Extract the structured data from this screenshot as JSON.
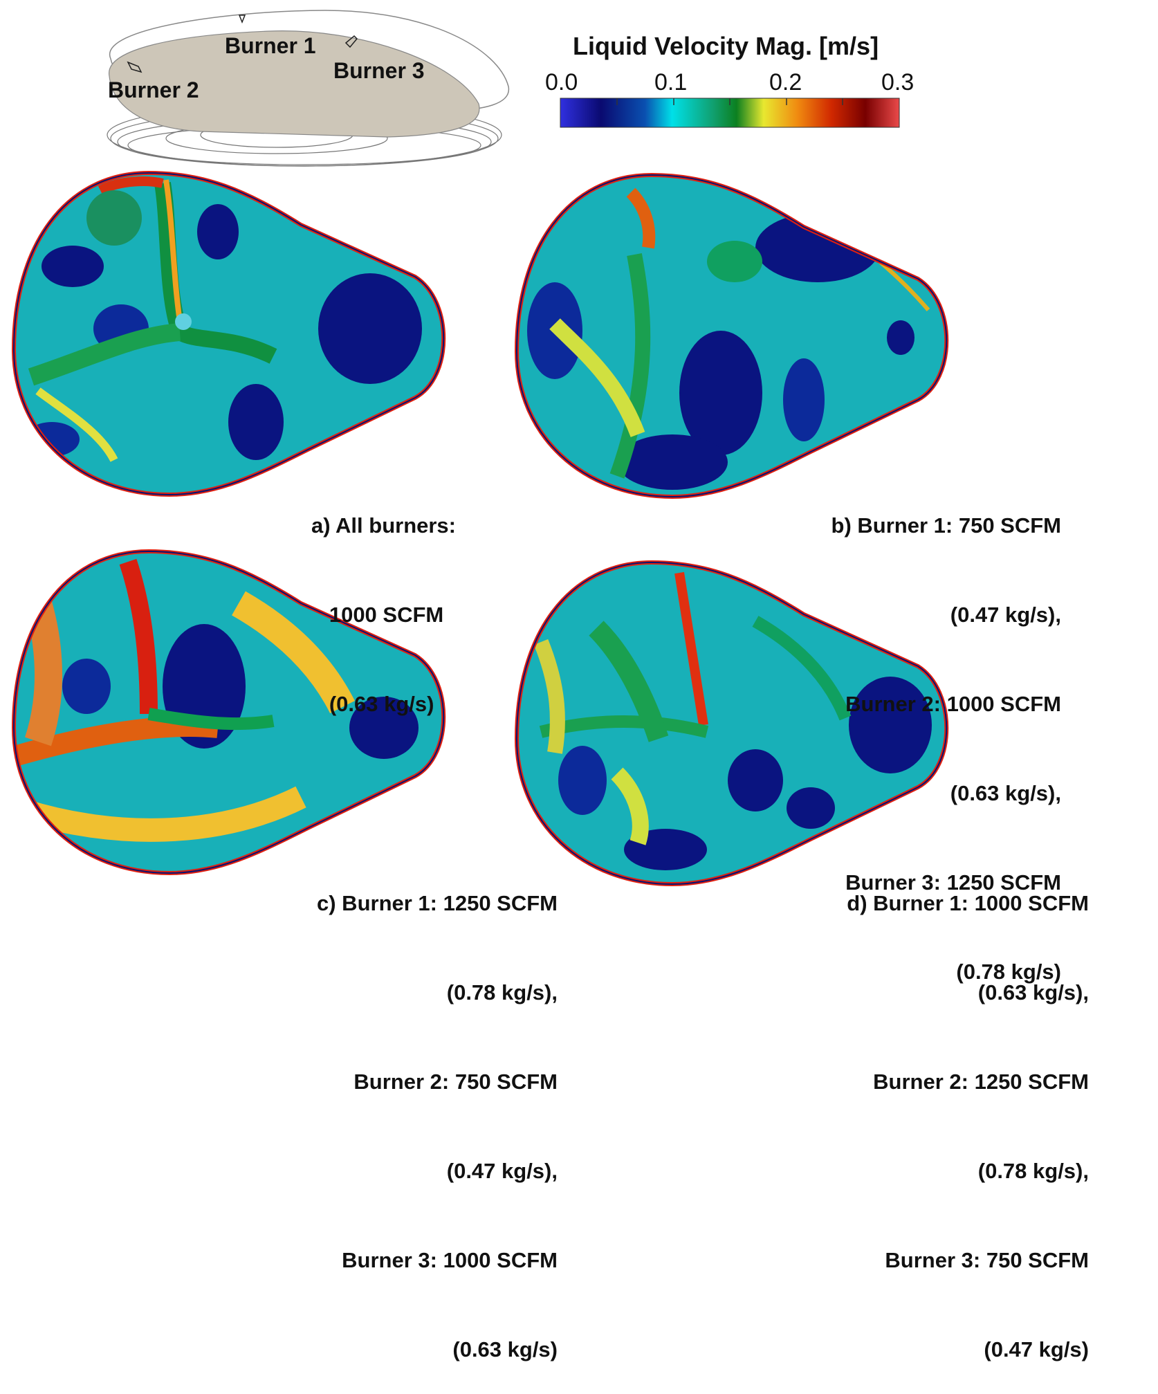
{
  "schematic": {
    "burner_labels": [
      "Burner 1",
      "Burner 2",
      "Burner 3"
    ]
  },
  "colorbar": {
    "title": "Liquid Velocity Mag. [m/s]",
    "ticks": [
      "0.0",
      "0.1",
      "0.2",
      "0.3"
    ],
    "range": [
      0.0,
      0.3
    ],
    "colors": [
      "#2b2bd6",
      "#0a0a6e",
      "#0a3aa0",
      "#00d8e0",
      "#10a060",
      "#0a8020",
      "#f0f020",
      "#f08010",
      "#e03000",
      "#800000",
      "#e84040"
    ]
  },
  "panels": [
    {
      "id": "a",
      "caption_lines": [
        "a) All burners:",
        "   1000 SCFM",
        "   (0.63 kg/s)"
      ]
    },
    {
      "id": "b",
      "caption_lines": [
        "b) Burner 1: 750 SCFM",
        "(0.47 kg/s),",
        "Burner 2: 1000 SCFM",
        "(0.63 kg/s),",
        "Burner 3: 1250 SCFM",
        "(0.78 kg/s)"
      ]
    },
    {
      "id": "c",
      "caption_lines": [
        "c) Burner 1: 1250 SCFM",
        "(0.78 kg/s),",
        "Burner 2: 750 SCFM",
        "(0.47 kg/s),",
        "Burner 3: 1000 SCFM",
        "(0.63 kg/s)"
      ]
    },
    {
      "id": "d",
      "caption_lines": [
        "d) Burner 1: 1000 SCFM",
        "(0.63 kg/s),",
        "Burner 2: 1250 SCFM",
        "(0.78 kg/s),",
        "Burner 3: 750 SCFM",
        "(0.47 kg/s)"
      ]
    }
  ]
}
